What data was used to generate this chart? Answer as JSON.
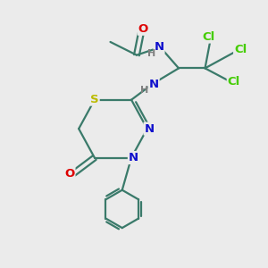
{
  "bg_color": "#ebebeb",
  "bond_color": "#3a7a6a",
  "bond_width": 1.6,
  "atom_colors": {
    "C": "#3a7a6a",
    "N": "#1010cc",
    "O": "#dd0000",
    "S": "#bbbb00",
    "Cl": "#44cc00",
    "H": "#808080"
  },
  "figsize": [
    3.0,
    3.0
  ],
  "dpi": 100
}
